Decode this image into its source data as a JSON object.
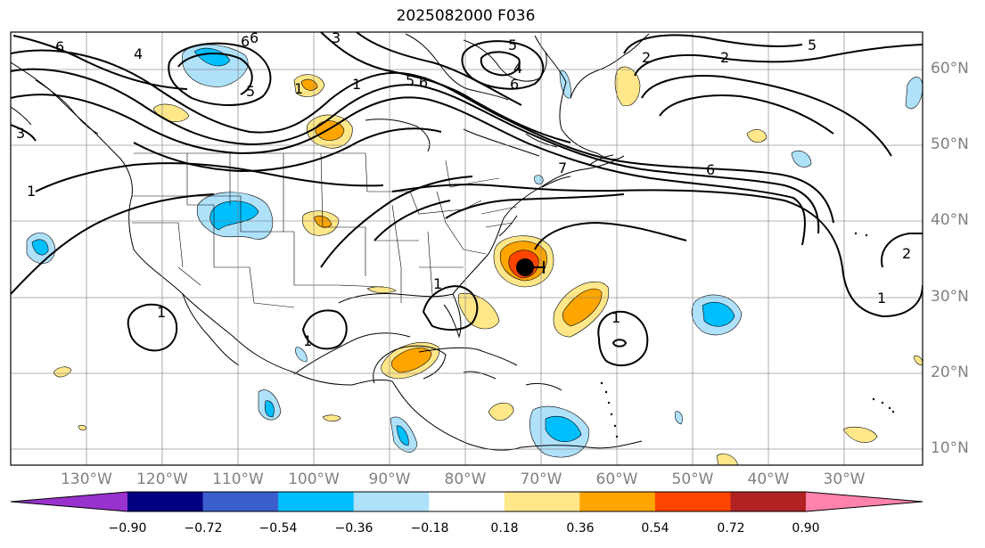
{
  "title": "2025082000 F036",
  "latitude_labels": [
    "60°N",
    "50°N",
    "40°N",
    "30°N",
    "20°N",
    "10°N"
  ],
  "longitude_labels": [
    "130°W",
    "120°W",
    "110°W",
    "100°W",
    "90°W",
    "80°W",
    "70°W",
    "60°W",
    "50°W",
    "40°W",
    "30°W"
  ],
  "contour_labels": [
    "6",
    "6",
    "4",
    "3",
    "1",
    "5",
    "6",
    "4",
    "5",
    "6",
    "1",
    "3",
    "1",
    "2",
    "5",
    "6",
    "7",
    "1",
    "2",
    "5",
    "1",
    "1",
    "1",
    "1",
    "2",
    "6"
  ],
  "colorbar": {
    "tick_labels": [
      "−0.90",
      "−0.72",
      "−0.54",
      "−0.36",
      "−0.18",
      "0.18",
      "0.36",
      "0.54",
      "0.72",
      "0.90"
    ],
    "colors": [
      "#9932cc",
      "#000080",
      "#3a5fcd",
      "#00bfff",
      "#afe1fa",
      "#ffffff",
      "#ffe78a",
      "#ffa500",
      "#ff4500",
      "#b22222",
      "#ff82ab"
    ]
  },
  "fill_colors": {
    "light_blue": "#afe1fa",
    "blue": "#00bfff",
    "light_yellow": "#ffe78a",
    "orange": "#ffa500",
    "red_orange": "#ff4500"
  },
  "storm_marker": "storm-center-marker"
}
